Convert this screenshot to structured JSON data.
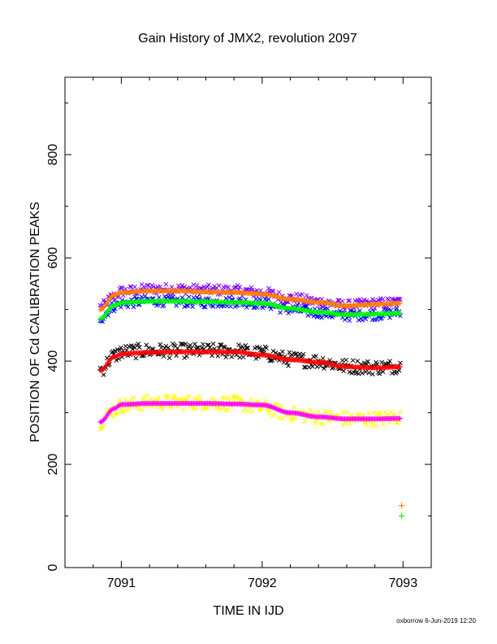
{
  "chart_data": {
    "type": "scatter",
    "title": "Gain History of JMX2, revolution 2097",
    "xlabel": "TIME IN IJD",
    "ylabel": "POSITION OF Cd CALIBRATION PEAKS",
    "xlim": [
      7090.6,
      7093.2
    ],
    "ylim": [
      0,
      950
    ],
    "x_ticks": [
      7091,
      7092,
      7093
    ],
    "y_ticks": [
      0,
      200,
      400,
      600,
      800
    ],
    "grid": false,
    "legend": "none",
    "footer": "oxborrow  6-Jun-2019 12:20",
    "series": [
      {
        "color": "#8000ff",
        "marker": "x",
        "scatter": 10,
        "x": [
          7090.85,
          7090.95,
          7091.0,
          7091.2,
          7091.4,
          7091.6,
          7091.8,
          7092.0,
          7092.2,
          7092.4,
          7092.6,
          7092.8,
          7092.98
        ],
        "y": [
          505,
          525,
          535,
          540,
          540,
          538,
          537,
          533,
          522,
          515,
          508,
          512,
          514
        ]
      },
      {
        "color": "#ff8000",
        "marker": "+",
        "scatter": 0,
        "x": [
          7090.85,
          7090.95,
          7091.0,
          7091.2,
          7091.4,
          7091.6,
          7091.8,
          7092.0,
          7092.2,
          7092.4,
          7092.6,
          7092.8,
          7092.98
        ],
        "y": [
          500,
          528,
          533,
          536,
          536,
          534,
          533,
          530,
          520,
          514,
          507,
          510,
          512
        ]
      },
      {
        "color": "#0000ff",
        "marker": "x",
        "scatter": 10,
        "x": [
          7090.85,
          7090.95,
          7091.0,
          7091.2,
          7091.4,
          7091.6,
          7091.8,
          7092.0,
          7092.2,
          7092.4,
          7092.6,
          7092.8,
          7092.98
        ],
        "y": [
          484,
          506,
          512,
          517,
          515,
          514,
          515,
          512,
          500,
          494,
          488,
          490,
          494
        ]
      },
      {
        "color": "#00ff00",
        "marker": "+",
        "scatter": 0,
        "x": [
          7090.85,
          7090.95,
          7091.0,
          7091.2,
          7091.4,
          7091.6,
          7091.8,
          7092.0,
          7092.2,
          7092.4,
          7092.6,
          7092.8,
          7092.98
        ],
        "y": [
          482,
          508,
          513,
          516,
          516,
          515,
          514,
          512,
          502,
          495,
          490,
          491,
          493
        ]
      },
      {
        "color": "#000000",
        "marker": "x",
        "scatter": 14,
        "x": [
          7090.85,
          7090.95,
          7091.0,
          7091.2,
          7091.4,
          7091.6,
          7091.8,
          7092.0,
          7092.2,
          7092.4,
          7092.6,
          7092.8,
          7092.98
        ],
        "y": [
          383,
          410,
          418,
          420,
          420,
          420,
          420,
          415,
          404,
          400,
          390,
          388,
          390
        ]
      },
      {
        "color": "#ff0000",
        "marker": "+",
        "scatter": 0,
        "x": [
          7090.85,
          7090.95,
          7091.0,
          7091.2,
          7091.4,
          7091.6,
          7091.8,
          7092.0,
          7092.2,
          7092.4,
          7092.6,
          7092.8,
          7092.98
        ],
        "y": [
          382,
          408,
          414,
          417,
          418,
          418,
          418,
          412,
          403,
          398,
          389,
          387,
          389
        ]
      },
      {
        "color": "#ffff00",
        "marker": "x",
        "scatter": 14,
        "x": [
          7090.85,
          7090.95,
          7091.0,
          7091.2,
          7091.4,
          7091.6,
          7091.8,
          7092.0,
          7092.2,
          7092.4,
          7092.6,
          7092.8,
          7092.98
        ],
        "y": [
          283,
          305,
          314,
          320,
          320,
          320,
          318,
          310,
          298,
          292,
          288,
          288,
          292
        ]
      },
      {
        "color": "#ff00ff",
        "marker": "+",
        "scatter": 0,
        "x": [
          7090.85,
          7090.95,
          7091.0,
          7091.2,
          7091.4,
          7091.6,
          7091.8,
          7092.0,
          7092.2,
          7092.4,
          7092.6,
          7092.8,
          7092.98
        ],
        "y": [
          282,
          308,
          316,
          318,
          318,
          318,
          317,
          315,
          300,
          292,
          288,
          288,
          289
        ]
      }
    ],
    "isolated_points": [
      {
        "color": "#ff8000",
        "marker": "+",
        "x": 7092.99,
        "y": 120
      },
      {
        "color": "#00ff00",
        "marker": "+",
        "x": 7092.99,
        "y": 100
      }
    ]
  }
}
